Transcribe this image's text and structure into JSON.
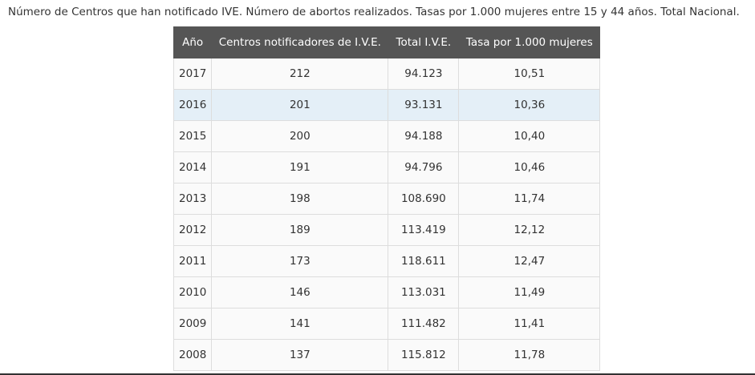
{
  "caption": "Número de Centros que han notificado IVE. Número de abortos realizados. Tasas por 1.000 mujeres entre 15 y 44 años. Total Nacional.",
  "table": {
    "headers": [
      "Año",
      "Centros notificadores de I.V.E.",
      "Total I.V.E.",
      "Tasa por 1.000 mujeres"
    ],
    "rows": [
      [
        "2017",
        "212",
        "94.123",
        "10,51"
      ],
      [
        "2016",
        "201",
        "93.131",
        "10,36"
      ],
      [
        "2015",
        "200",
        "94.188",
        "10,40"
      ],
      [
        "2014",
        "191",
        "94.796",
        "10,46"
      ],
      [
        "2013",
        "198",
        "108.690",
        "11,74"
      ],
      [
        "2012",
        "189",
        "113.419",
        "12,12"
      ],
      [
        "2011",
        "173",
        "118.611",
        "12,47"
      ],
      [
        "2010",
        "146",
        "113.031",
        "11,49"
      ],
      [
        "2009",
        "141",
        "111.482",
        "11,41"
      ],
      [
        "2008",
        "137",
        "115.812",
        "11,78"
      ]
    ],
    "highlighted_row_year": "2016"
  },
  "colors": {
    "header_bg": "#555555",
    "header_text": "#ffffff",
    "row_bg": "#fafafa",
    "highlight_row_bg": "#e4eff7",
    "border": "#dddddd",
    "text": "#333333"
  }
}
